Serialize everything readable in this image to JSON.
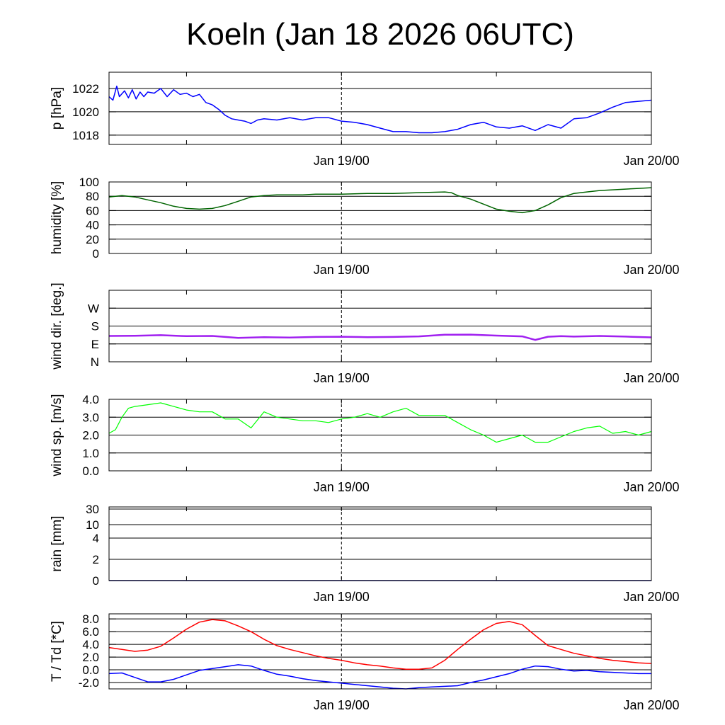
{
  "chart_data": {
    "title": "Koeln (Jan 18 2026 06UTC)",
    "x_tick_labels": [
      "Jan 19/00",
      "Jan 20/00"
    ],
    "x_range": [
      "Jan 18 06UTC",
      "Jan 20 00UTC"
    ],
    "panels": [
      {
        "id": "pressure",
        "type": "line",
        "ylabel": "p [hPa]",
        "ylim": [
          1017.2,
          1023.4
        ],
        "yticks": [
          1018,
          1020,
          1022
        ],
        "ytick_labels": [
          "1018",
          "1020",
          "1022"
        ],
        "grid_lines": [
          1018,
          1020,
          1022
        ],
        "series": [
          {
            "color": "#0000ff",
            "x": [
              6,
              6.3,
              6.6,
              6.8,
              7.2,
              7.5,
              7.8,
              8.1,
              8.4,
              8.7,
              9,
              9.5,
              10,
              10.5,
              11,
              11.5,
              12,
              12.5,
              13,
              13.5,
              14,
              14.5,
              15,
              15.5,
              16,
              16.5,
              17,
              17.5,
              18,
              19,
              20,
              21,
              22,
              23,
              24,
              25,
              26,
              27,
              28,
              29,
              30,
              31,
              32,
              33,
              34,
              35,
              36,
              37,
              38,
              39,
              40,
              41,
              42,
              43,
              44,
              45,
              46,
              47,
              48
            ],
            "y": [
              1021.3,
              1021.0,
              1022.2,
              1021.3,
              1021.8,
              1021.2,
              1021.9,
              1021.1,
              1021.7,
              1021.3,
              1021.7,
              1021.6,
              1022.0,
              1021.3,
              1021.9,
              1021.5,
              1021.6,
              1021.3,
              1021.5,
              1020.8,
              1020.6,
              1020.2,
              1019.7,
              1019.4,
              1019.3,
              1019.2,
              1019.0,
              1019.3,
              1019.4,
              1019.3,
              1019.5,
              1019.3,
              1019.5,
              1019.5,
              1019.2,
              1019.1,
              1018.9,
              1018.6,
              1018.3,
              1018.3,
              1018.2,
              1018.2,
              1018.3,
              1018.5,
              1018.9,
              1019.1,
              1018.7,
              1018.6,
              1018.8,
              1018.4,
              1018.9,
              1018.6,
              1019.4,
              1019.5,
              1019.9,
              1020.4,
              1020.8,
              1020.9,
              1021.0
            ]
          }
        ]
      },
      {
        "id": "humidity",
        "type": "line",
        "ylabel": "humidity [%]",
        "ylim": [
          0,
          100
        ],
        "yticks": [
          0,
          20,
          40,
          60,
          80,
          100
        ],
        "ytick_labels": [
          "0",
          "20",
          "40",
          "60",
          "80",
          "100"
        ],
        "grid_lines": [
          20,
          40,
          60,
          80,
          100
        ],
        "series": [
          {
            "color": "#006400",
            "x": [
              6,
              7,
              8,
              9,
              10,
              11,
              12,
              13,
              14,
              15,
              16,
              17,
              18,
              19,
              20,
              21,
              22,
              23,
              24,
              26,
              28,
              30,
              32,
              32.5,
              33,
              34,
              35,
              36,
              37,
              38,
              39,
              40,
              41,
              42,
              43,
              44,
              45,
              46,
              47,
              48
            ],
            "y": [
              79,
              81,
              79,
              75,
              71,
              66,
              63,
              62,
              63,
              67,
              73,
              79,
              81,
              82,
              82,
              82,
              83,
              83,
              83,
              84,
              84,
              85,
              86,
              85,
              81,
              76,
              69,
              62,
              59,
              57,
              60,
              68,
              78,
              84,
              86,
              88,
              89,
              90,
              91,
              92
            ]
          }
        ]
      },
      {
        "id": "wind_direction",
        "type": "line",
        "ylabel": "wind dir. [deg.]",
        "ylim": [
          0,
          360
        ],
        "yticks": [
          0,
          90,
          180,
          270
        ],
        "ytick_labels": [
          "N",
          "E",
          "S",
          "W"
        ],
        "grid_lines": [
          90,
          180,
          270
        ],
        "series": [
          {
            "color": "#a020f0",
            "x": [
              6,
              8,
              10,
              12,
              14,
              16,
              18,
              20,
              22,
              24,
              26,
              28,
              30,
              32,
              34,
              36,
              38,
              39,
              40,
              41,
              42,
              44,
              46,
              48
            ],
            "y": [
              130,
              131,
              134,
              129,
              130,
              120,
              124,
              122,
              125,
              126,
              124,
              125,
              128,
              136,
              137,
              132,
              128,
              110,
              126,
              129,
              127,
              130,
              127,
              123
            ]
          }
        ]
      },
      {
        "id": "wind_speed",
        "type": "line",
        "ylabel": "wind sp. [m/s]",
        "ylim": [
          0,
          4
        ],
        "yticks": [
          0,
          1,
          2,
          3,
          4
        ],
        "ytick_labels": [
          "0.0",
          "1.0",
          "2.0",
          "3.0",
          "4.0"
        ],
        "grid_lines": [
          1,
          2,
          3,
          4
        ],
        "series": [
          {
            "color": "#00ff00",
            "x": [
              6,
              6.5,
              7,
              7.5,
              8,
              9,
              10,
              11,
              12,
              13,
              14,
              15,
              16,
              17,
              18,
              19,
              20,
              21,
              22,
              23,
              24,
              25,
              26,
              27,
              28,
              29,
              30,
              31,
              32,
              33,
              34,
              35,
              36,
              37,
              38,
              39,
              40,
              41,
              42,
              43,
              44,
              45,
              46,
              47,
              48
            ],
            "y": [
              2.1,
              2.3,
              3.0,
              3.5,
              3.6,
              3.7,
              3.8,
              3.6,
              3.4,
              3.3,
              3.3,
              2.9,
              2.9,
              2.4,
              3.3,
              3.0,
              2.9,
              2.8,
              2.8,
              2.7,
              2.9,
              3.0,
              3.2,
              3.0,
              3.3,
              3.5,
              3.1,
              3.1,
              3.1,
              2.7,
              2.3,
              2.0,
              1.6,
              1.8,
              2.0,
              1.6,
              1.6,
              1.9,
              2.2,
              2.4,
              2.5,
              2.1,
              2.2,
              2.0,
              2.2
            ]
          }
        ]
      },
      {
        "id": "rain",
        "type": "line",
        "ylabel": "rain [mm]",
        "yticks": [
          0,
          2,
          4,
          10,
          30
        ],
        "ytick_labels": [
          "0",
          "2",
          "4",
          "10",
          "30"
        ],
        "grid_lines": [
          2,
          4,
          10,
          30
        ],
        "scale": "nonlinear",
        "series": [
          {
            "color": "#000080",
            "x": [
              6,
              48
            ],
            "y": [
              0,
              0
            ]
          }
        ]
      },
      {
        "id": "temperature",
        "type": "line",
        "ylabel": "T / Td [*C]",
        "ylim": [
          -3,
          8.8
        ],
        "yticks": [
          -2,
          0,
          2,
          4,
          6,
          8
        ],
        "ytick_labels": [
          "-2.0",
          "0.0",
          "2.0",
          "4.0",
          "6.0",
          "8.0"
        ],
        "grid_lines": [
          -2,
          0,
          2,
          4,
          6,
          8
        ],
        "series": [
          {
            "color": "#ff0000",
            "x": [
              6,
              7,
              8,
              9,
              10,
              11,
              12,
              13,
              14,
              15,
              16,
              17,
              18,
              19,
              20,
              21,
              22,
              23,
              24,
              25,
              26,
              27,
              28,
              29,
              30,
              31,
              32,
              33,
              34,
              35,
              36,
              37,
              38,
              39,
              40,
              41,
              42,
              43,
              44,
              45,
              46,
              47,
              48
            ],
            "y": [
              3.5,
              3.2,
              2.9,
              3.1,
              3.7,
              5.0,
              6.4,
              7.5,
              7.9,
              7.7,
              6.9,
              6.0,
              4.8,
              3.8,
              3.2,
              2.7,
              2.2,
              1.8,
              1.5,
              1.1,
              0.8,
              0.6,
              0.3,
              0.1,
              0.1,
              0.3,
              1.5,
              3.2,
              4.8,
              6.3,
              7.3,
              7.6,
              7.1,
              5.4,
              3.8,
              3.2,
              2.6,
              2.2,
              1.8,
              1.5,
              1.3,
              1.1,
              1.0
            ]
          },
          {
            "color": "#0000ff",
            "x": [
              6,
              7,
              8,
              9,
              10,
              11,
              12,
              13,
              14,
              15,
              16,
              17,
              18,
              19,
              20,
              21,
              22,
              23,
              24,
              25,
              26,
              27,
              28,
              29,
              30,
              31,
              32,
              33,
              34,
              35,
              36,
              37,
              38,
              39,
              40,
              41,
              42,
              43,
              44,
              45,
              46,
              47,
              48
            ],
            "y": [
              -0.6,
              -0.5,
              -1.2,
              -1.9,
              -1.9,
              -1.5,
              -0.8,
              -0.1,
              0.2,
              0.5,
              0.8,
              0.6,
              -0.1,
              -0.7,
              -1.0,
              -1.4,
              -1.7,
              -1.9,
              -2.1,
              -2.3,
              -2.5,
              -2.7,
              -2.9,
              -3.0,
              -2.8,
              -2.7,
              -2.6,
              -2.5,
              -2.0,
              -1.6,
              -1.1,
              -0.6,
              0.1,
              0.6,
              0.5,
              0.1,
              -0.2,
              -0.1,
              -0.3,
              -0.4,
              -0.5,
              -0.6,
              -0.6
            ]
          }
        ]
      }
    ]
  }
}
